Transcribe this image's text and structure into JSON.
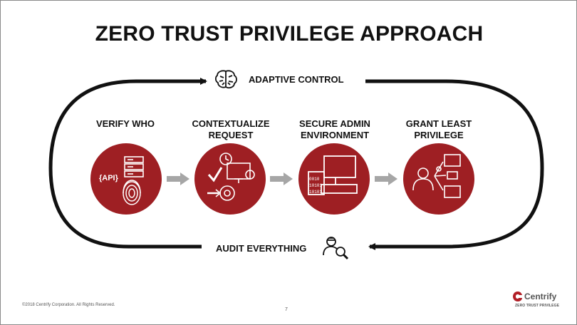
{
  "title": "ZERO TRUST PRIVILEGE APPROACH",
  "loop": {
    "top_label": "ADAPTIVE CONTROL",
    "bottom_label": "AUDIT EVERYTHING"
  },
  "steps": [
    {
      "line1": "VERIFY WHO",
      "line2": "",
      "icon": "api-fingerprint-icon"
    },
    {
      "line1": "CONTEXTUALIZE",
      "line2": "REQUEST",
      "icon": "context-request-icon"
    },
    {
      "line1": "SECURE ADMIN",
      "line2": "ENVIRONMENT",
      "icon": "secure-admin-icon"
    },
    {
      "line1": "GRANT LEAST",
      "line2": "PRIVILEGE",
      "icon": "least-privilege-icon"
    }
  ],
  "icon_text": {
    "api": "{API}",
    "binary": [
      "0010",
      "10101",
      "10101"
    ]
  },
  "footer": {
    "copyright": "©2018 Centrify Corporation. All Rights Reserved.",
    "page_number": "7"
  },
  "logo": {
    "name": "Centrify",
    "tagline": "ZERO TRUST PRIVILEGE"
  },
  "colors": {
    "circle": "#9e1f23",
    "loop": "#111111",
    "connector_arrow": "#a6a6a6"
  }
}
